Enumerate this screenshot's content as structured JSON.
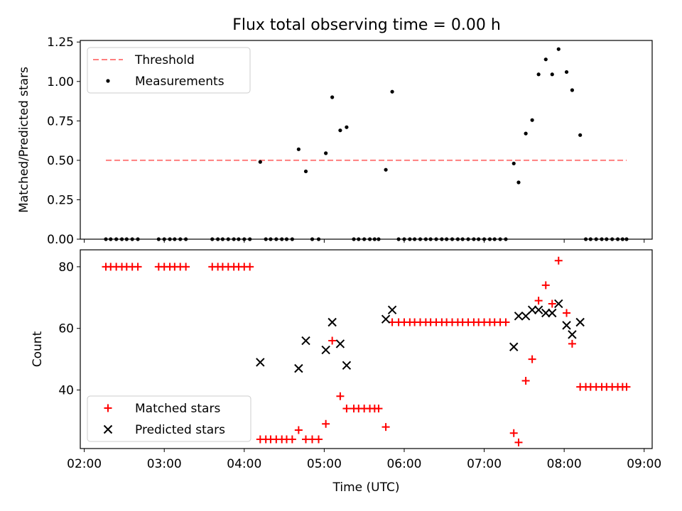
{
  "title": "Flux total observing time = 0.00 h",
  "colors": {
    "threshold": "#ff7f7f",
    "measurement": "#000000",
    "matched": "#ff0000",
    "predicted": "#000000"
  },
  "chart_data": [
    {
      "type": "scatter",
      "title": "Flux total observing time = 0.00 h",
      "xlabel": "",
      "ylabel": "Matched/Predicted stars",
      "xlim": [
        1.95,
        9.1
      ],
      "ylim": [
        0,
        1.26
      ],
      "yticks": [
        0.0,
        0.25,
        0.5,
        0.75,
        1.0,
        1.25
      ],
      "ytick_labels": [
        "0.00",
        "0.25",
        "0.50",
        "0.75",
        "1.00",
        "1.25"
      ],
      "legend_position": "top-left",
      "series": [
        {
          "name": "Threshold",
          "kind": "dashed-line",
          "x": [
            2.27,
            8.78
          ],
          "y": [
            0.5,
            0.5
          ]
        },
        {
          "name": "Measurements",
          "kind": "dots",
          "x": [
            2.27,
            2.33,
            2.4,
            2.47,
            2.53,
            2.6,
            2.67,
            2.93,
            3.0,
            3.07,
            3.13,
            3.2,
            3.27,
            3.6,
            3.67,
            3.73,
            3.8,
            3.87,
            3.93,
            4.0,
            4.07,
            4.2,
            4.27,
            4.33,
            4.4,
            4.47,
            4.53,
            4.6,
            4.68,
            4.77,
            4.85,
            4.93,
            5.02,
            5.1,
            5.2,
            5.28,
            5.37,
            5.43,
            5.5,
            5.57,
            5.63,
            5.68,
            5.77,
            5.85,
            5.93,
            6.0,
            6.07,
            6.13,
            6.2,
            6.27,
            6.33,
            6.4,
            6.47,
            6.53,
            6.6,
            6.67,
            6.73,
            6.8,
            6.87,
            6.93,
            7.0,
            7.07,
            7.13,
            7.2,
            7.27,
            7.37,
            7.43,
            7.52,
            7.6,
            7.68,
            7.77,
            7.85,
            7.93,
            8.03,
            8.1,
            8.2,
            8.27,
            8.33,
            8.4,
            8.47,
            8.53,
            8.6,
            8.67,
            8.73,
            8.78
          ],
          "y": [
            0,
            0,
            0,
            0,
            0,
            0,
            0,
            0,
            0,
            0,
            0,
            0,
            0,
            0,
            0,
            0,
            0,
            0,
            0,
            0,
            0,
            0.49,
            0,
            0,
            0,
            0,
            0,
            0,
            0.57,
            0.43,
            0,
            0,
            0.545,
            0.9,
            0.69,
            0.71,
            0,
            0,
            0,
            0,
            0,
            0,
            0.44,
            0.935,
            0,
            0,
            0,
            0,
            0,
            0,
            0,
            0,
            0,
            0,
            0,
            0,
            0,
            0,
            0,
            0,
            0,
            0,
            0,
            0,
            0,
            0.48,
            0.36,
            0.67,
            0.755,
            1.045,
            1.14,
            1.045,
            1.205,
            1.06,
            0.945,
            0.66,
            0,
            0,
            0,
            0,
            0,
            0,
            0,
            0,
            0
          ]
        }
      ]
    },
    {
      "type": "scatter",
      "title": "",
      "xlabel": "Time (UTC)",
      "ylabel": "Count",
      "xlim": [
        1.95,
        9.1
      ],
      "ylim": [
        21,
        85.5
      ],
      "yticks": [
        40,
        60,
        80
      ],
      "ytick_labels": [
        "40",
        "60",
        "80"
      ],
      "xticks": [
        2,
        3,
        4,
        5,
        6,
        7,
        8,
        9
      ],
      "xtick_labels": [
        "02:00",
        "03:00",
        "04:00",
        "05:00",
        "06:00",
        "07:00",
        "08:00",
        "09:00"
      ],
      "legend_position": "bottom-left",
      "series": [
        {
          "name": "Matched stars",
          "kind": "plus",
          "x": [
            2.27,
            2.33,
            2.4,
            2.47,
            2.53,
            2.6,
            2.67,
            2.93,
            3.0,
            3.07,
            3.13,
            3.2,
            3.27,
            3.6,
            3.67,
            3.73,
            3.8,
            3.87,
            3.93,
            4.0,
            4.07,
            4.2,
            4.27,
            4.33,
            4.4,
            4.47,
            4.53,
            4.6,
            4.68,
            4.77,
            4.85,
            4.93,
            5.02,
            5.1,
            5.2,
            5.28,
            5.37,
            5.43,
            5.5,
            5.57,
            5.63,
            5.68,
            5.77,
            5.85,
            5.93,
            6.0,
            6.07,
            6.13,
            6.2,
            6.27,
            6.33,
            6.4,
            6.47,
            6.53,
            6.6,
            6.67,
            6.73,
            6.8,
            6.87,
            6.93,
            7.0,
            7.07,
            7.13,
            7.2,
            7.27,
            7.37,
            7.43,
            7.52,
            7.6,
            7.68,
            7.77,
            7.85,
            7.93,
            8.03,
            8.1,
            8.2,
            8.27,
            8.33,
            8.4,
            8.47,
            8.53,
            8.6,
            8.67,
            8.73,
            8.78
          ],
          "y": [
            80,
            80,
            80,
            80,
            80,
            80,
            80,
            80,
            80,
            80,
            80,
            80,
            80,
            80,
            80,
            80,
            80,
            80,
            80,
            80,
            80,
            24,
            24,
            24,
            24,
            24,
            24,
            24,
            27,
            24,
            24,
            24,
            29,
            56,
            38,
            34,
            34,
            34,
            34,
            34,
            34,
            34,
            28,
            62,
            62,
            62,
            62,
            62,
            62,
            62,
            62,
            62,
            62,
            62,
            62,
            62,
            62,
            62,
            62,
            62,
            62,
            62,
            62,
            62,
            62,
            26,
            23,
            43,
            50,
            69,
            74,
            68,
            82,
            65,
            55,
            41,
            41,
            41,
            41,
            41,
            41,
            41,
            41,
            41,
            41
          ]
        },
        {
          "name": "Predicted stars",
          "kind": "x",
          "x": [
            4.2,
            4.68,
            4.77,
            5.02,
            5.1,
            5.2,
            5.28,
            5.77,
            5.85,
            7.37,
            7.43,
            7.52,
            7.6,
            7.68,
            7.77,
            7.85,
            7.93,
            8.03,
            8.1,
            8.2
          ],
          "y": [
            49,
            47,
            56,
            53,
            62,
            55,
            48,
            63,
            66,
            54,
            64,
            64,
            66,
            66,
            65,
            65,
            68,
            61,
            58,
            62
          ]
        }
      ]
    }
  ]
}
